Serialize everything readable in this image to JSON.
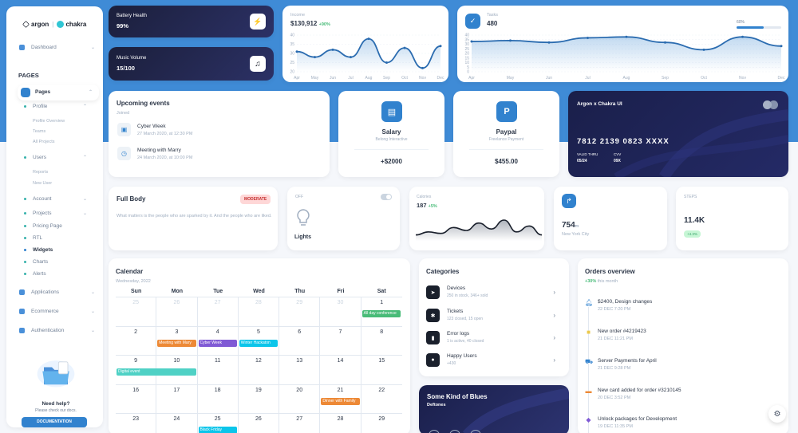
{
  "brand": {
    "argon": "argon",
    "chakra": "chakra",
    "separator": "|"
  },
  "sidebar": {
    "dashboard": "Dashboard",
    "pages_heading": "PAGES",
    "pages": "Pages",
    "profile": "Profile",
    "profile_sub": [
      "Profile Overview",
      "Teams",
      "All Projects"
    ],
    "users": "Users",
    "users_sub": [
      "Reports",
      "New User"
    ],
    "items": [
      "Account",
      "Projects",
      "Pricing Page",
      "RTL",
      "Widgets",
      "Charts",
      "Alerts"
    ],
    "applications": "Applications",
    "ecommerce": "Ecommerce",
    "authentication": "Authentication",
    "help_title": "Need help?",
    "help_sub": "Please check our docs.",
    "doc_button": "DOCUMENTATION"
  },
  "battery": {
    "label": "Battery Health",
    "value": "99%"
  },
  "music": {
    "label": "Music Volume",
    "value": "15/100"
  },
  "income": {
    "label": "Income",
    "value": "$130,912",
    "change": "+90%"
  },
  "tasks": {
    "label": "Tasks",
    "value": "480",
    "progress_label": "60%",
    "progress": 0.6
  },
  "income_chart": {
    "type": "line",
    "x": [
      "Apr",
      "May",
      "Jun",
      "Jul",
      "Aug",
      "Sep",
      "Oct",
      "Nov",
      "Dec"
    ],
    "values": [
      31,
      28,
      32,
      28,
      38,
      25,
      33,
      22,
      34
    ],
    "yticks": [
      "40",
      "35",
      "30",
      "25",
      "20"
    ],
    "ylim": [
      20,
      40
    ]
  },
  "tasks_chart": {
    "type": "line",
    "x": [
      "Apr",
      "May",
      "Jun",
      "Jul",
      "Aug",
      "Sep",
      "Oct",
      "Nov",
      "Dec"
    ],
    "values": [
      33,
      34,
      32,
      37,
      38,
      32,
      24,
      38,
      28
    ],
    "yticks": [
      "40",
      "35",
      "30",
      "25",
      "20",
      "15",
      "10",
      "5",
      "0"
    ],
    "ylim": [
      0,
      40
    ]
  },
  "events": {
    "title": "Upcoming events",
    "sub": "Joined",
    "items": [
      {
        "title": "Cyber Week",
        "date": "27 March 2020, at 12:30 PM"
      },
      {
        "title": "Meeting with Marry",
        "date": "24 March 2020, at 10:00 PM"
      }
    ]
  },
  "salary": {
    "title": "Salary",
    "sub": "Belong Interactive",
    "value": "+$2000"
  },
  "paypal": {
    "title": "Paypal",
    "sub": "Freelance Payment",
    "value": "$455.00"
  },
  "credit": {
    "title": "Argon x Chakra UI",
    "number": "7812 2139 0823 XXXX",
    "valid_label": "VALID THRU",
    "valid": "05/24",
    "cvv_label": "CVV",
    "cvv": "09X"
  },
  "fullbody": {
    "title": "Full Body",
    "badge": "MODERATE",
    "text": "What matters is the people who are sparked by it. And the people who are liked."
  },
  "lights": {
    "state": "OFF",
    "label": "Lights"
  },
  "calories": {
    "label": "Calories",
    "value": "187",
    "change": "+5%"
  },
  "calories_chart": {
    "type": "area",
    "values": [
      10,
      12,
      11,
      15,
      13,
      18,
      14,
      20,
      12,
      16,
      10
    ]
  },
  "location": {
    "value": "754",
    "unit": "m",
    "city": "New York City"
  },
  "steps": {
    "label": "STEPS",
    "value": "11.4K",
    "change": "+4.3%"
  },
  "calendar": {
    "title": "Calendar",
    "sub": "Wednesday, 2022",
    "days": [
      "Sun",
      "Mon",
      "Tue",
      "Wed",
      "Thu",
      "Fri",
      "Sat"
    ],
    "weeks": [
      [
        "25",
        "26",
        "27",
        "28",
        "29",
        "30",
        "1"
      ],
      [
        "2",
        "3",
        "4",
        "5",
        "6",
        "7",
        "8"
      ],
      [
        "9",
        "10",
        "11",
        "12",
        "13",
        "14",
        "15"
      ],
      [
        "16",
        "17",
        "18",
        "19",
        "20",
        "21",
        "22"
      ],
      [
        "23",
        "24",
        "25",
        "26",
        "27",
        "28",
        "29"
      ]
    ],
    "events": {
      "all_day": "All day conference",
      "meeting": "Meeting with Mary",
      "cyber": "Cyber Week",
      "winter": "Winter Hackaton",
      "digital": "Digital event",
      "dinner": "Dinner with Family",
      "black": "Black Friday"
    }
  },
  "categories": {
    "title": "Categories",
    "items": [
      {
        "title": "Devices",
        "sub": "250 in stock, 346+ sold"
      },
      {
        "title": "Tickets",
        "sub": "123 closed, 15 open"
      },
      {
        "title": "Error logs",
        "sub": "1 is active, 40 closed"
      },
      {
        "title": "Happy Users",
        "sub": "+430"
      }
    ]
  },
  "blues": {
    "title": "Some Kind of Blues",
    "artist": "Deftones"
  },
  "orders": {
    "title": "Orders overview",
    "change": "+30%",
    "period": "this month",
    "items": [
      {
        "title": "$2400, Design changes",
        "date": "22 DEC 7:20 PM"
      },
      {
        "title": "New order #4219423",
        "date": "21 DEC 11:21 PM"
      },
      {
        "title": "Server Payments for April",
        "date": "21 DEC 9:28 PM"
      },
      {
        "title": "New card added for order #3210145",
        "date": "20 DEC 3:52 PM"
      },
      {
        "title": "Unlock packages for Development",
        "date": "19 DEC 11:35 PM"
      }
    ]
  },
  "colors": {
    "accent": "#3182ce",
    "bluebg": "#3f8bd6",
    "teal": "#4fd1c5",
    "orange": "#ed8936",
    "purple": "#805ad5",
    "cyan": "#0bc5ea",
    "green": "#48bb78"
  }
}
